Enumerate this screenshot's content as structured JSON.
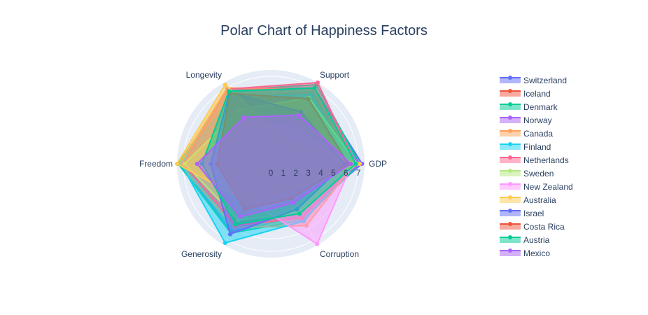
{
  "chart_data": {
    "type": "radar",
    "title": "Polar Chart of Happiness Factors",
    "axes": [
      "GDP",
      "Support",
      "Longevity",
      "Freedom",
      "Generosity",
      "Corruption"
    ],
    "radial_ticks": [
      "0",
      "1",
      "2",
      "3",
      "4",
      "5",
      "6",
      "7"
    ],
    "radial_range": [
      0,
      7.5
    ],
    "grid": true,
    "legend_position": "right",
    "series": [
      {
        "name": "Switzerland",
        "color": "#636efa",
        "values": [
          7.3,
          7.0,
          6.9,
          7.2,
          6.3,
          4.8
        ]
      },
      {
        "name": "Iceland",
        "color": "#EF553B",
        "values": [
          6.9,
          6.6,
          6.2,
          6.6,
          5.0,
          3.7
        ]
      },
      {
        "name": "Denmark",
        "color": "#00cc96",
        "values": [
          7.1,
          7.3,
          6.8,
          7.4,
          6.4,
          5.2
        ]
      },
      {
        "name": "Norway",
        "color": "#ab63fa",
        "values": [
          7.2,
          4.9,
          5.3,
          6.8,
          5.2,
          4.0
        ]
      },
      {
        "name": "Canada",
        "color": "#FFA15A",
        "values": [
          6.7,
          6.9,
          7.0,
          7.3,
          5.9,
          5.7
        ]
      },
      {
        "name": "Finland",
        "color": "#19d3f3",
        "values": [
          6.6,
          6.4,
          6.2,
          7.2,
          7.3,
          5.3
        ]
      },
      {
        "name": "Netherlands",
        "color": "#FF6692",
        "values": [
          6.8,
          7.5,
          6.9,
          7.0,
          5.7,
          5.0
        ]
      },
      {
        "name": "Sweden",
        "color": "#B6E880",
        "values": [
          6.9,
          6.1,
          5.0,
          6.9,
          5.2,
          4.5
        ]
      },
      {
        "name": "New Zealand",
        "color": "#FF97FF",
        "values": [
          6.5,
          3.4,
          3.9,
          5.0,
          3.4,
          7.4
        ]
      },
      {
        "name": "Australia",
        "color": "#FECB52",
        "values": [
          7.1,
          2.2,
          7.3,
          7.5,
          3.6,
          2.4
        ]
      },
      {
        "name": "Israel",
        "color": "#636efa",
        "values": [
          5.9,
          4.8,
          6.6,
          4.8,
          6.5,
          4.2
        ]
      },
      {
        "name": "Costa Rica",
        "color": "#EF553B",
        "values": [
          6.2,
          6.0,
          6.5,
          4.3,
          4.2,
          3.2
        ]
      },
      {
        "name": "Austria",
        "color": "#00cc96",
        "values": [
          6.8,
          7.0,
          6.7,
          5.5,
          5.6,
          4.6
        ]
      },
      {
        "name": "Mexico",
        "color": "#ab63fa",
        "values": [
          6.4,
          4.5,
          4.3,
          5.9,
          4.9,
          3.6
        ]
      }
    ]
  }
}
